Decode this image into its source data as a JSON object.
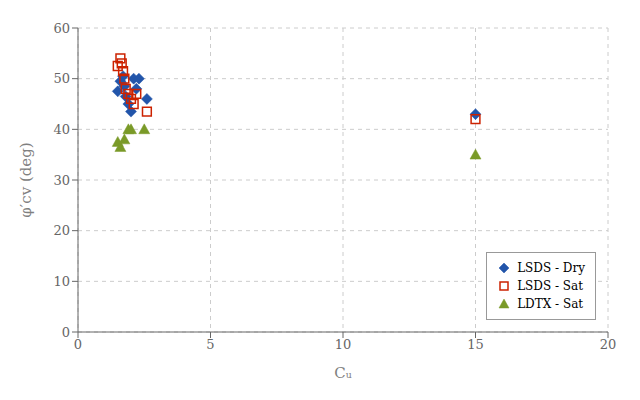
{
  "chart_data": {
    "type": "scatter",
    "xlabel": "Cᵤ",
    "ylabel": "φ′cv (deg)",
    "xlim": [
      0,
      20
    ],
    "ylim": [
      0,
      60
    ],
    "xticks": [
      0,
      5,
      10,
      15,
      20
    ],
    "yticks": [
      0,
      10,
      20,
      30,
      40,
      50,
      60
    ],
    "grid": true,
    "legend": "lower right",
    "series": [
      {
        "name": "LSDS - Dry",
        "color": "#2255aa",
        "marker": "diamond",
        "x": [
          1.5,
          1.6,
          1.7,
          1.75,
          1.8,
          1.9,
          2.0,
          2.1,
          2.2,
          2.3,
          2.6,
          15.0
        ],
        "values": [
          47.5,
          49.5,
          50.5,
          48.5,
          46.5,
          45.0,
          43.5,
          50.0,
          48.0,
          50.0,
          46.0,
          43.0
        ]
      },
      {
        "name": "LSDS - Sat",
        "color": "#cc2200",
        "marker": "open_square",
        "x": [
          1.5,
          1.6,
          1.65,
          1.7,
          1.75,
          1.8,
          1.9,
          2.0,
          2.1,
          2.2,
          2.6,
          15.0
        ],
        "values": [
          52.5,
          54.0,
          53.0,
          51.5,
          50.0,
          48.0,
          47.0,
          46.0,
          45.0,
          47.0,
          43.5,
          42.0
        ]
      },
      {
        "name": "LDTX - Sat",
        "color": "#7a9a28",
        "marker": "triangle",
        "x": [
          1.5,
          1.6,
          1.75,
          1.9,
          2.0,
          2.5,
          15.0
        ],
        "values": [
          37.5,
          36.5,
          38.0,
          40.0,
          40.0,
          40.0,
          35.0
        ]
      }
    ]
  }
}
